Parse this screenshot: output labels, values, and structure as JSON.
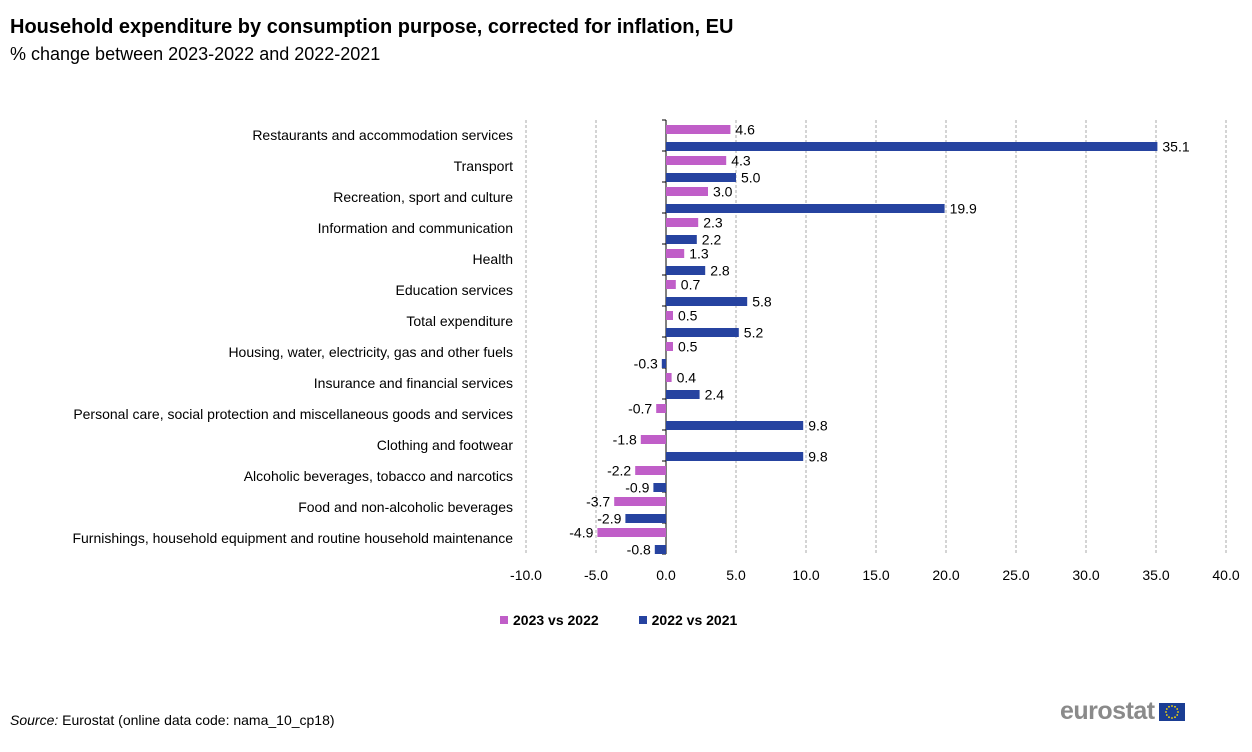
{
  "title": "Household expenditure by consumption purpose, corrected for inflation, EU",
  "subtitle": "% change between 2023-2022 and 2022-2021",
  "source_label": "Source:",
  "source_text": " Eurostat (online data code: nama_10_cp18)",
  "logo_text": "eurostat",
  "colors": {
    "series_2023": "#c05ec8",
    "series_2022": "#2643a0",
    "grid": "#aaaaaa",
    "flag": "#1a3d93",
    "flag_star": "#ffdd00"
  },
  "chart_data": {
    "type": "bar",
    "orientation": "horizontal",
    "title": "Household expenditure by consumption purpose, corrected for inflation, EU",
    "subtitle": "% change between 2023-2022 and 2022-2021",
    "xlim": [
      -10,
      40
    ],
    "xticks": [
      -10,
      -5,
      0,
      5,
      10,
      15,
      20,
      25,
      30,
      35,
      40
    ],
    "xtick_labels": [
      "-10.0",
      "-5.0",
      "0.0",
      "5.0",
      "10.0",
      "15.0",
      "20.0",
      "25.0",
      "30.0",
      "35.0",
      "40.0"
    ],
    "grid": "vertical dashed",
    "legend_position": "bottom",
    "categories": [
      "Restaurants and accommodation services",
      "Transport",
      "Recreation, sport and culture",
      "Information and communication",
      "Health",
      "Education services",
      "Total expenditure",
      "Housing, water, electricity, gas and other fuels",
      "Insurance and financial services",
      "Personal care, social protection and miscellaneous goods and services",
      "Clothing and footwear",
      "Alcoholic beverages, tobacco and narcotics",
      "Food and non-alcoholic beverages",
      "Furnishings, household equipment and routine household maintenance"
    ],
    "series": [
      {
        "name": "2023 vs 2022",
        "color": "#c05ec8",
        "values": [
          4.6,
          4.3,
          3.0,
          2.3,
          1.3,
          0.7,
          0.5,
          0.5,
          0.4,
          -0.7,
          -1.8,
          -2.2,
          -3.7,
          -4.9
        ]
      },
      {
        "name": "2022 vs 2021",
        "color": "#2643a0",
        "values": [
          35.1,
          5.0,
          19.9,
          2.2,
          2.8,
          5.8,
          5.2,
          -0.3,
          2.4,
          9.8,
          9.8,
          -0.9,
          -2.9,
          -0.8
        ]
      }
    ]
  }
}
